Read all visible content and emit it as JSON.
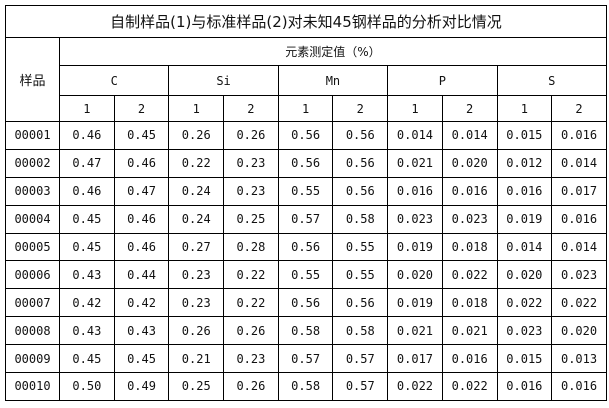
{
  "title": "自制样品(1)与标准样品(2)对未知45钢样品的分析对比情况",
  "header": {
    "sample_label": "样品",
    "group_label": "元素测定值（%）",
    "elements": [
      "C",
      "Si",
      "Mn",
      "P",
      "S"
    ],
    "sub": [
      "1",
      "2"
    ]
  },
  "rows": [
    [
      "00001",
      "0.46",
      "0.45",
      "0.26",
      "0.26",
      "0.56",
      "0.56",
      "0.014",
      "0.014",
      "0.015",
      "0.016"
    ],
    [
      "00002",
      "0.47",
      "0.46",
      "0.22",
      "0.23",
      "0.56",
      "0.56",
      "0.021",
      "0.020",
      "0.012",
      "0.014"
    ],
    [
      "00003",
      "0.46",
      "0.47",
      "0.24",
      "0.23",
      "0.55",
      "0.56",
      "0.016",
      "0.016",
      "0.016",
      "0.017"
    ],
    [
      "00004",
      "0.45",
      "0.46",
      "0.24",
      "0.25",
      "0.57",
      "0.58",
      "0.023",
      "0.023",
      "0.019",
      "0.016"
    ],
    [
      "00005",
      "0.45",
      "0.46",
      "0.27",
      "0.28",
      "0.56",
      "0.55",
      "0.019",
      "0.018",
      "0.014",
      "0.014"
    ],
    [
      "00006",
      "0.43",
      "0.44",
      "0.23",
      "0.22",
      "0.55",
      "0.55",
      "0.020",
      "0.022",
      "0.020",
      "0.023"
    ],
    [
      "00007",
      "0.42",
      "0.42",
      "0.23",
      "0.22",
      "0.56",
      "0.56",
      "0.019",
      "0.018",
      "0.022",
      "0.022"
    ],
    [
      "00008",
      "0.43",
      "0.43",
      "0.26",
      "0.26",
      "0.58",
      "0.58",
      "0.021",
      "0.021",
      "0.023",
      "0.020"
    ],
    [
      "00009",
      "0.45",
      "0.45",
      "0.21",
      "0.23",
      "0.57",
      "0.57",
      "0.017",
      "0.016",
      "0.015",
      "0.013"
    ],
    [
      "00010",
      "0.50",
      "0.49",
      "0.25",
      "0.26",
      "0.58",
      "0.57",
      "0.022",
      "0.022",
      "0.016",
      "0.016"
    ]
  ]
}
